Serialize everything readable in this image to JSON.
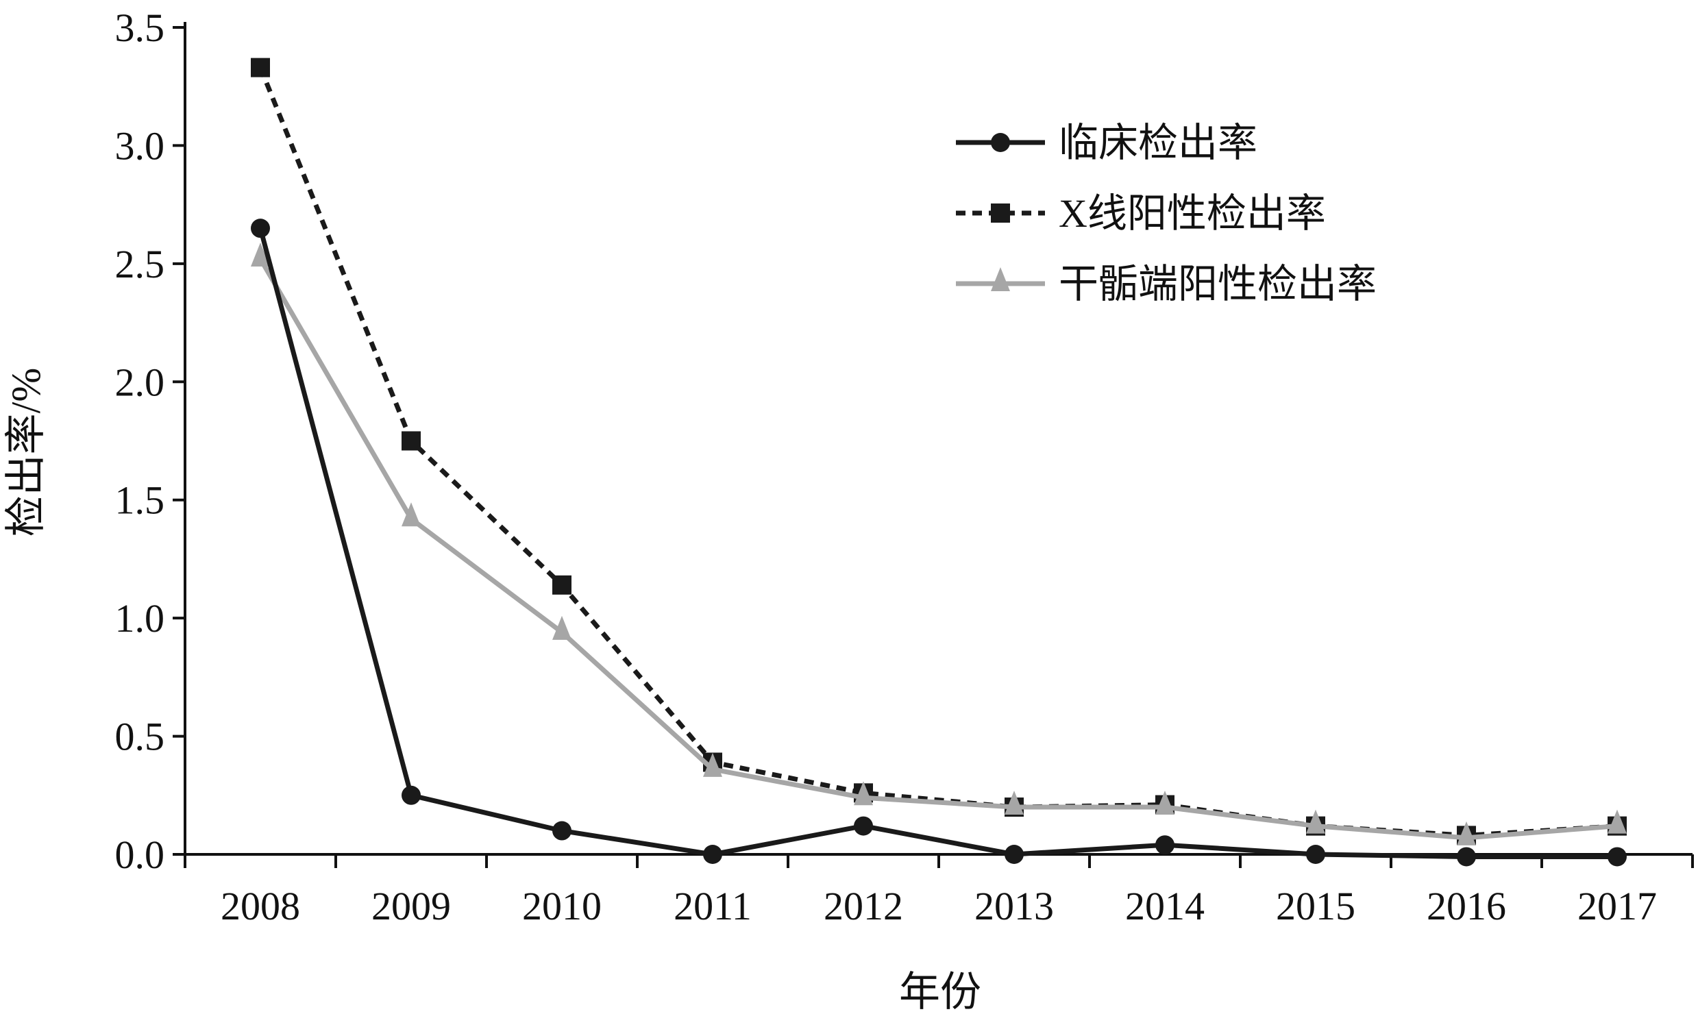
{
  "chart_data": {
    "type": "line",
    "title": "",
    "xlabel": "年份",
    "ylabel": "检出率/%",
    "categories": [
      "2008",
      "2009",
      "2010",
      "2011",
      "2012",
      "2013",
      "2014",
      "2015",
      "2016",
      "2017"
    ],
    "ylim": [
      0,
      3.5
    ],
    "yticks": [
      "0.0",
      "0.5",
      "1.0",
      "1.5",
      "2.0",
      "2.5",
      "3.0",
      "3.5"
    ],
    "grid": false,
    "legend_position": "top-right",
    "series": [
      {
        "name": "临床检出率",
        "color": "#1a1a1a",
        "line": "solid",
        "marker": "circle",
        "values": [
          2.65,
          0.25,
          0.1,
          0.0,
          0.12,
          0.0,
          0.04,
          0.0,
          -0.01,
          -0.01
        ]
      },
      {
        "name": "X线阳性检出率",
        "color": "#1a1a1a",
        "line": "dotted",
        "marker": "square",
        "values": [
          3.33,
          1.75,
          1.14,
          0.39,
          0.26,
          0.2,
          0.21,
          0.12,
          0.08,
          0.12
        ]
      },
      {
        "name": "干骺端阳性检出率",
        "color": "#a6a6a6",
        "line": "solid",
        "marker": "triangle",
        "values": [
          2.52,
          1.42,
          0.94,
          0.36,
          0.24,
          0.2,
          0.2,
          0.12,
          0.07,
          0.12
        ]
      }
    ]
  }
}
